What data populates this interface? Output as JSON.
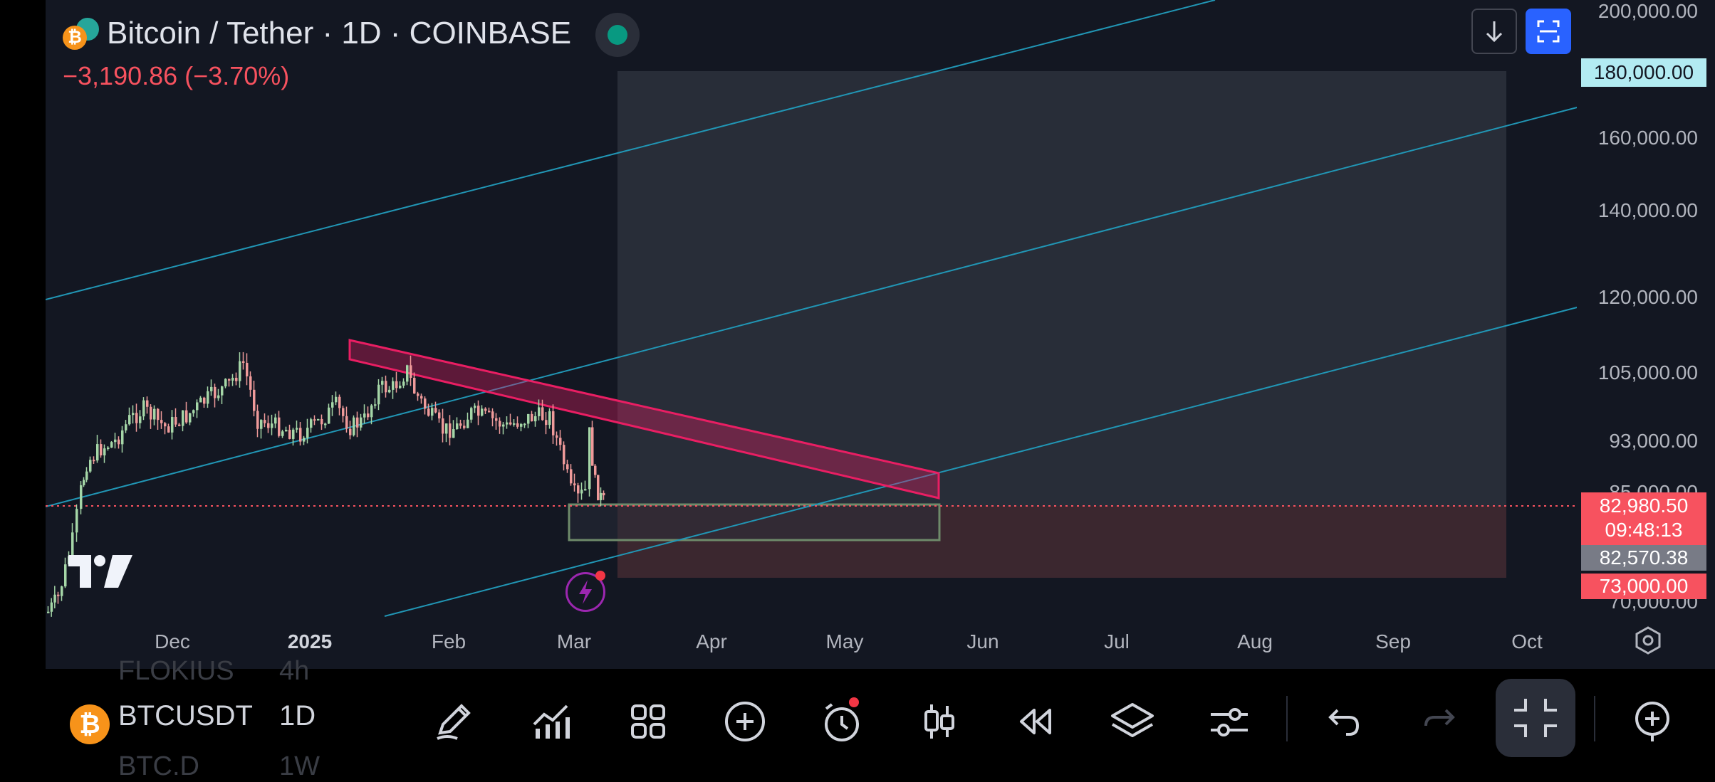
{
  "header": {
    "title": "Bitcoin / Tether · 1D · COINBASE",
    "change": "−3,190.86 (−3.70%)"
  },
  "price_axis": {
    "labels": [
      "200,000.00",
      "160,000.00",
      "140,000.00",
      "120,000.00",
      "105,000.00",
      "93,000.00",
      "85,000.00",
      "70,000.00"
    ],
    "tag_target": "180,000.00",
    "tag_last_price": "82,980.50",
    "tag_countdown": "09:48:13",
    "tag_prev": "82,570.38",
    "tag_stop": "73,000.00"
  },
  "time_axis": {
    "labels": [
      "Dec",
      "2025",
      "Feb",
      "Mar",
      "Apr",
      "May",
      "Jun",
      "Jul",
      "Aug",
      "Sep",
      "Oct"
    ]
  },
  "bottom_bar": {
    "symbol": "BTCUSDT",
    "interval": "1D",
    "ghost_top_symbol": "FLOKIUS",
    "ghost_top_interval": "4h",
    "ghost_bottom_symbol": "BTC.D",
    "ghost_bottom_interval": "1W"
  },
  "icons": {
    "download": "download-icon",
    "fullscreen": "fullscreen-icon",
    "draw": "pencil-icon",
    "indicators": "indicators-icon",
    "templates": "grid-icon",
    "add": "plus-circle-icon",
    "alert": "alarm-icon",
    "chart_type": "candles-icon",
    "replay": "rewind-icon",
    "layers": "layers-icon",
    "settings": "sliders-icon",
    "undo": "undo-icon",
    "redo": "redo-icon",
    "compact": "collapse-icon",
    "add_symbol": "plus-circle-icon"
  },
  "colors": {
    "background": "#131722",
    "up": "#a5d6a7",
    "down": "#ef9a9a",
    "trendline": "#2196b5",
    "resistance": "#e91e63",
    "accent": "#2962ff",
    "last_price": "#f7525f"
  }
}
